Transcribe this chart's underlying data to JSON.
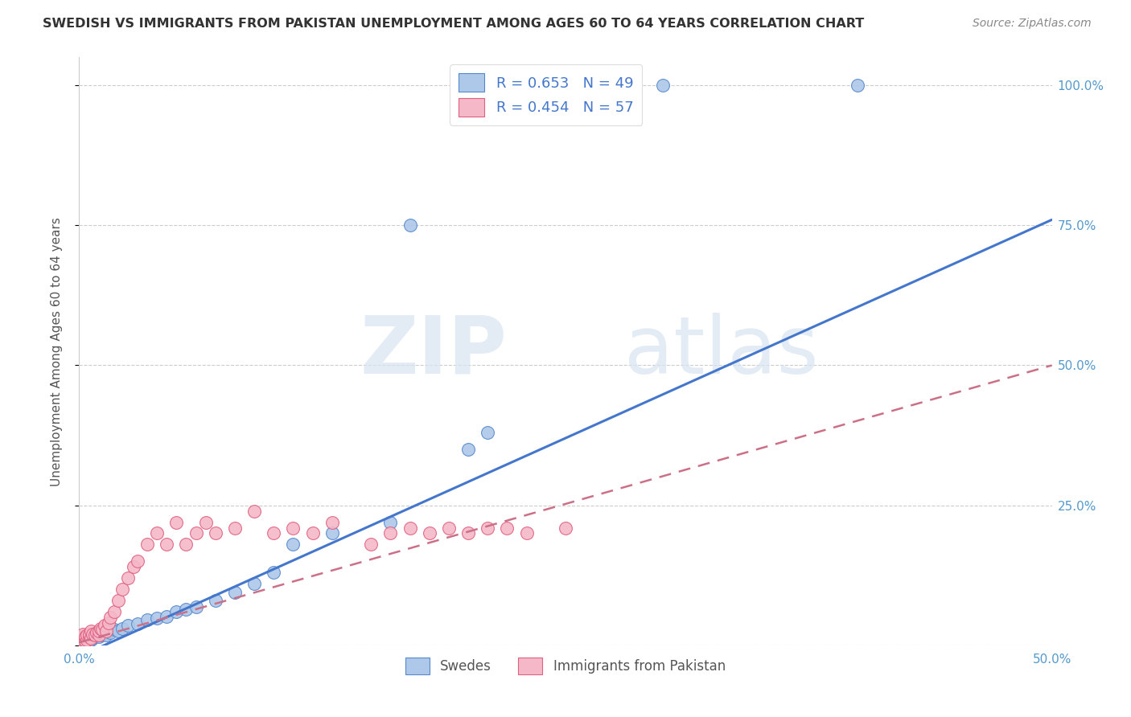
{
  "title": "SWEDISH VS IMMIGRANTS FROM PAKISTAN UNEMPLOYMENT AMONG AGES 60 TO 64 YEARS CORRELATION CHART",
  "source": "Source: ZipAtlas.com",
  "ylabel": "Unemployment Among Ages 60 to 64 years",
  "legend_swedes": "Swedes",
  "legend_pakistan": "Immigrants from Pakistan",
  "legend_r_swedes": "R = 0.653",
  "legend_n_swedes": "N = 49",
  "legend_r_pakistan": "R = 0.454",
  "legend_n_pakistan": "N = 57",
  "watermark_zip": "ZIP",
  "watermark_atlas": "atlas",
  "swedes_face_color": "#adc8e8",
  "swedes_edge_color": "#5588cc",
  "pakistan_face_color": "#f5b8c8",
  "pakistan_edge_color": "#e06080",
  "swedes_line_color": "#4477cc",
  "pakistan_line_color": "#cc7088",
  "background_color": "#ffffff",
  "grid_color": "#cccccc",
  "tick_color": "#5599cc",
  "title_color": "#333333",
  "source_color": "#888888",
  "ylabel_color": "#555555",
  "legend_text_color": "#4477cc",
  "bottom_legend_color": "#555555",
  "xmin": 0.0,
  "xmax": 0.5,
  "ymin": 0.0,
  "ymax": 1.05,
  "sw_trend_x0": 0.0,
  "sw_trend_y0": -0.02,
  "sw_trend_x1": 0.5,
  "sw_trend_y1": 0.76,
  "pk_trend_x0": 0.0,
  "pk_trend_y0": 0.005,
  "pk_trend_x1": 0.5,
  "pk_trend_y1": 0.5,
  "sw_scatter_x": [
    0.001,
    0.001,
    0.001,
    0.002,
    0.002,
    0.002,
    0.003,
    0.003,
    0.004,
    0.004,
    0.005,
    0.005,
    0.006,
    0.006,
    0.007,
    0.007,
    0.008,
    0.008,
    0.009,
    0.01,
    0.011,
    0.012,
    0.013,
    0.014,
    0.015,
    0.016,
    0.018,
    0.02,
    0.022,
    0.025,
    0.03,
    0.035,
    0.04,
    0.045,
    0.05,
    0.055,
    0.06,
    0.07,
    0.08,
    0.09,
    0.1,
    0.11,
    0.13,
    0.16,
    0.17,
    0.2,
    0.21,
    0.3,
    0.4
  ],
  "sw_scatter_y": [
    0.005,
    0.008,
    0.01,
    0.005,
    0.01,
    0.015,
    0.008,
    0.012,
    0.01,
    0.015,
    0.008,
    0.012,
    0.01,
    0.018,
    0.012,
    0.02,
    0.015,
    0.018,
    0.02,
    0.015,
    0.018,
    0.02,
    0.022,
    0.018,
    0.025,
    0.022,
    0.028,
    0.025,
    0.03,
    0.035,
    0.038,
    0.045,
    0.048,
    0.052,
    0.06,
    0.065,
    0.068,
    0.08,
    0.095,
    0.11,
    0.13,
    0.18,
    0.2,
    0.22,
    0.75,
    0.35,
    0.38,
    1.0,
    1.0
  ],
  "pk_scatter_x": [
    0.001,
    0.001,
    0.001,
    0.001,
    0.002,
    0.002,
    0.002,
    0.002,
    0.003,
    0.003,
    0.004,
    0.004,
    0.005,
    0.005,
    0.006,
    0.006,
    0.007,
    0.008,
    0.009,
    0.01,
    0.01,
    0.011,
    0.012,
    0.013,
    0.014,
    0.015,
    0.016,
    0.018,
    0.02,
    0.022,
    0.025,
    0.028,
    0.03,
    0.035,
    0.04,
    0.045,
    0.05,
    0.055,
    0.06,
    0.065,
    0.07,
    0.08,
    0.09,
    0.1,
    0.11,
    0.12,
    0.13,
    0.15,
    0.16,
    0.17,
    0.18,
    0.19,
    0.2,
    0.21,
    0.22,
    0.23,
    0.25
  ],
  "pk_scatter_y": [
    0.005,
    0.008,
    0.01,
    0.015,
    0.005,
    0.01,
    0.015,
    0.02,
    0.008,
    0.015,
    0.01,
    0.018,
    0.015,
    0.02,
    0.012,
    0.025,
    0.02,
    0.018,
    0.022,
    0.018,
    0.025,
    0.03,
    0.028,
    0.035,
    0.025,
    0.04,
    0.05,
    0.06,
    0.08,
    0.1,
    0.12,
    0.14,
    0.15,
    0.18,
    0.2,
    0.18,
    0.22,
    0.18,
    0.2,
    0.22,
    0.2,
    0.21,
    0.24,
    0.2,
    0.21,
    0.2,
    0.22,
    0.18,
    0.2,
    0.21,
    0.2,
    0.21,
    0.2,
    0.21,
    0.21,
    0.2,
    0.21
  ]
}
